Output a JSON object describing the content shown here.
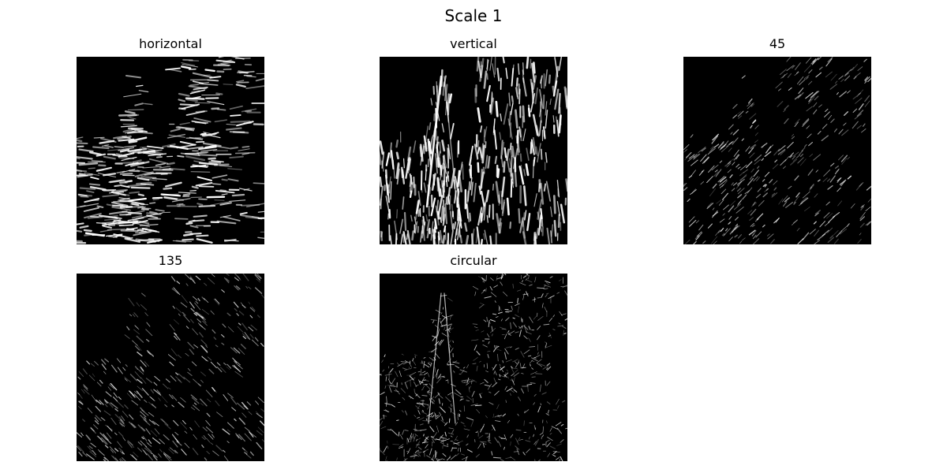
{
  "figure": {
    "title": "Scale 1",
    "panels": [
      {
        "title": "horizontal",
        "filter": "horizontal"
      },
      {
        "title": "vertical",
        "filter": "vertical"
      },
      {
        "title": "45",
        "filter": "diag45"
      },
      {
        "title": "135",
        "filter": "diag135"
      },
      {
        "title": "circular",
        "filter": "circular"
      }
    ]
  },
  "colors": {
    "background": "#ffffff",
    "image_background": "#000000",
    "edge": "#ffffff"
  }
}
